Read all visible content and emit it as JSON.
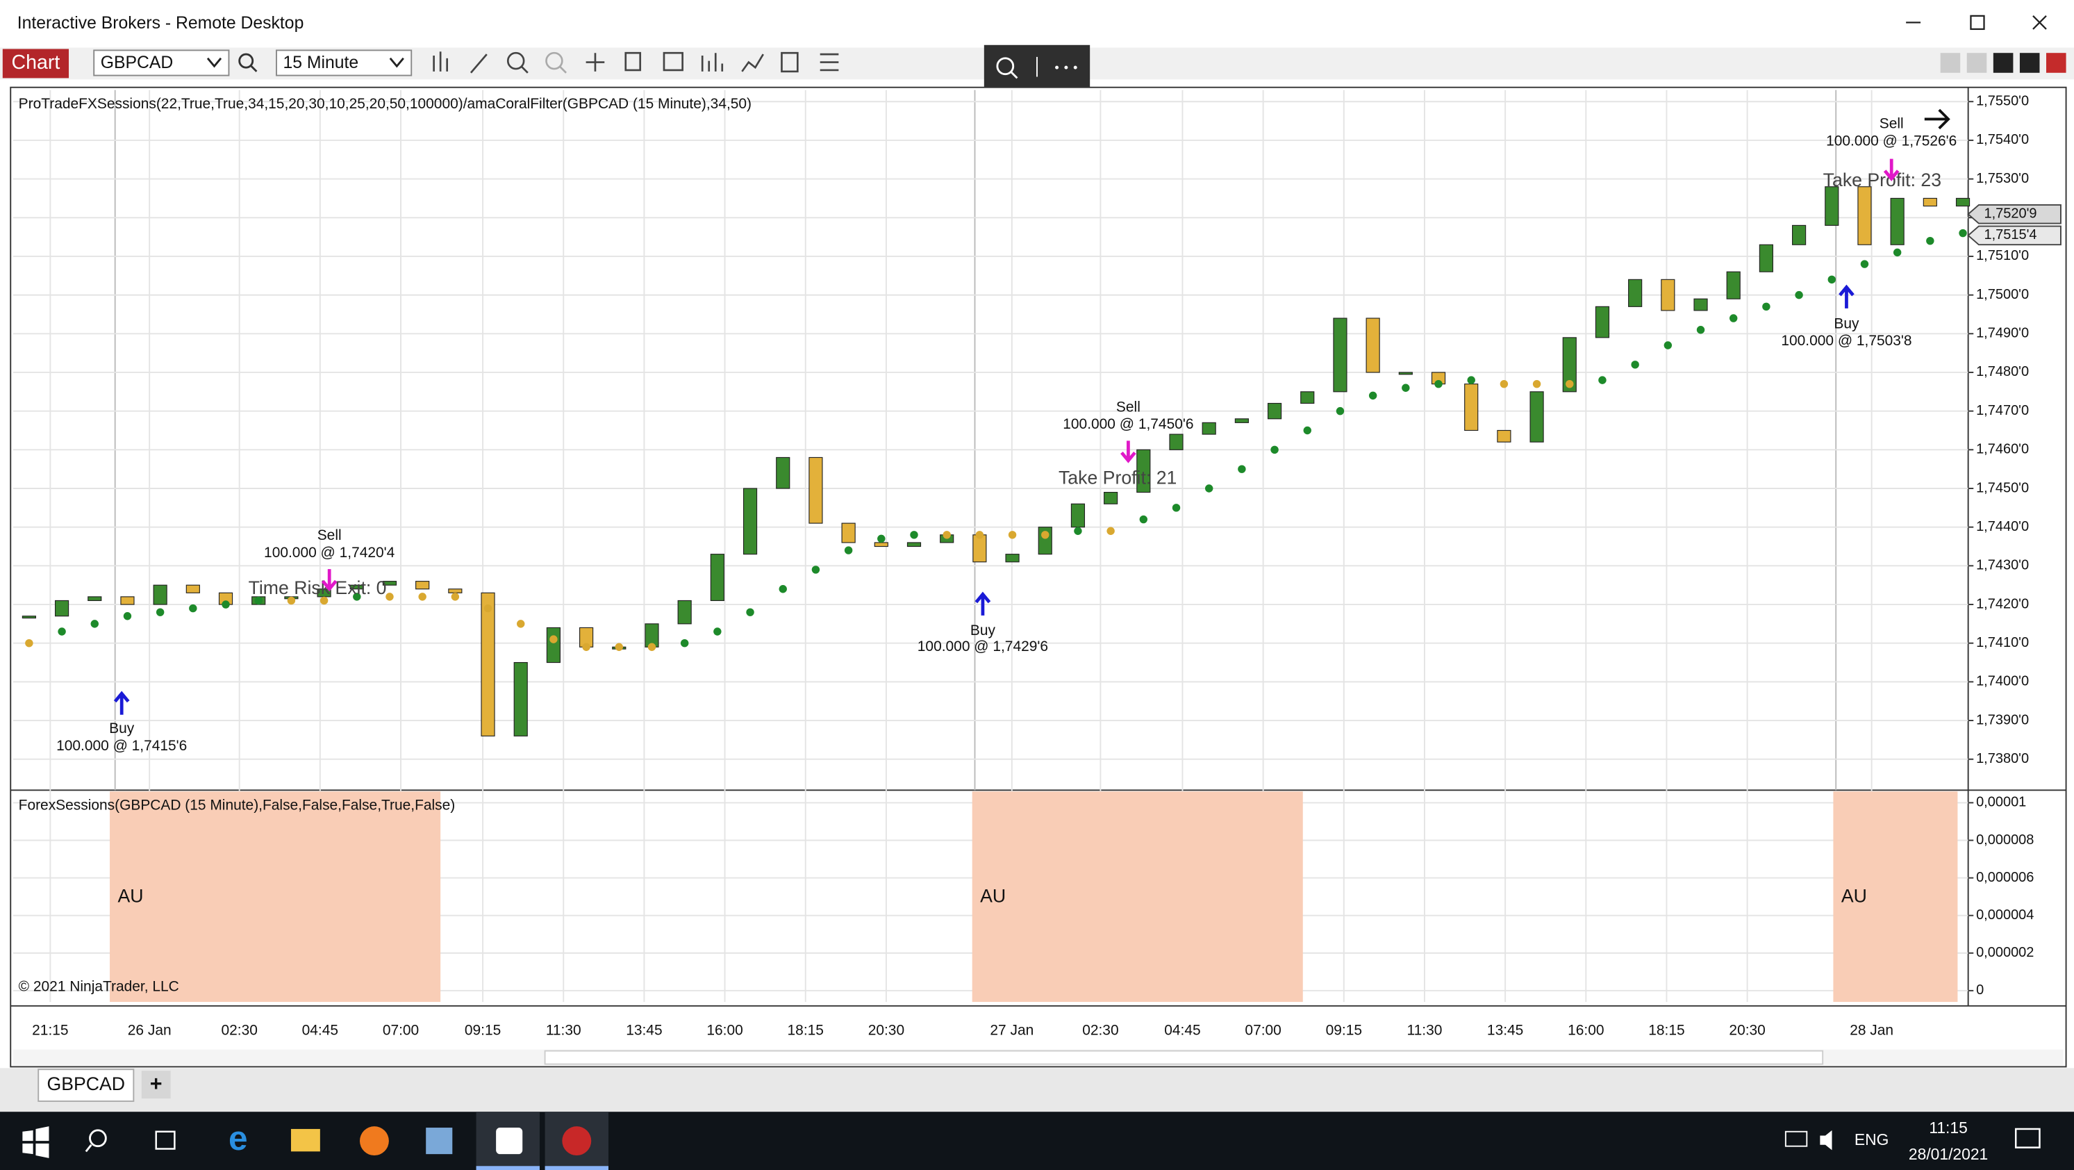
{
  "window": {
    "title": "Interactive Brokers - Remote Desktop"
  },
  "toolbar": {
    "chart_button": "Chart",
    "instrument": "GBPCAD",
    "interval": "15 Minute"
  },
  "chart_data": [
    {
      "type": "candlestick",
      "title": "ProTradeFXSessions(22,True,True,34,15,20,30,10,25,20,50,100000)/amaCoralFilter(GBPCAD (15 Minute),34,50)",
      "series": [
        {
          "color": "#3a8a2e",
          "down_color": "#e3b13a",
          "values": [
            1.7417,
            1.7421,
            1.7422,
            1.742,
            1.7425,
            1.7423,
            1.742,
            1.7422,
            1.7422,
            1.7424,
            1.7425,
            1.7426,
            1.7424,
            1.7423,
            1.7386,
            1.7405,
            1.7414,
            1.7409,
            1.7409,
            1.7415,
            1.7421,
            1.7433,
            1.745,
            1.7458,
            1.7441,
            1.7436,
            1.7435,
            1.7436,
            1.7438,
            1.7431,
            1.7433,
            1.744,
            1.7446,
            1.7449,
            1.746,
            1.7464,
            1.7467,
            1.7468,
            1.7472,
            1.7475,
            1.7494,
            1.748,
            1.748,
            1.7477,
            1.7465,
            1.7462,
            1.7475,
            1.7489,
            1.7497,
            1.7504,
            1.7496,
            1.7499,
            1.7506,
            1.7513,
            1.7518,
            1.7528,
            1.7513,
            1.7525,
            1.7523,
            1.7525
          ]
        },
        {
          "color": "#d9a830",
          "rise_color": "#1d8a2a",
          "values": [
            1.741,
            1.7413,
            1.7415,
            1.7417,
            1.7418,
            1.7419,
            1.742,
            1.7421,
            1.7421,
            1.7421,
            1.7422,
            1.7422,
            1.7422,
            1.7422,
            1.7419,
            1.7415,
            1.7411,
            1.7409,
            1.7409,
            1.7409,
            1.741,
            1.7413,
            1.7418,
            1.7424,
            1.7429,
            1.7434,
            1.7437,
            1.7438,
            1.7438,
            1.7438,
            1.7438,
            1.7438,
            1.7439,
            1.7439,
            1.7442,
            1.7445,
            1.745,
            1.7455,
            1.746,
            1.7465,
            1.747,
            1.7474,
            1.7476,
            1.7477,
            1.7478,
            1.7477,
            1.7477,
            1.7477,
            1.7478,
            1.7482,
            1.7487,
            1.7491,
            1.7494,
            1.7497,
            1.75,
            1.7504,
            1.7508,
            1.7511,
            1.7514,
            1.7516
          ]
        }
      ],
      "ylim": [
        1.7372,
        1.7553
      ],
      "yticks": [
        {
          "value": 1.738,
          "label": "1,7380'0"
        },
        {
          "value": 1.739,
          "label": "1,7390'0"
        },
        {
          "value": 1.74,
          "label": "1,7400'0"
        },
        {
          "value": 1.741,
          "label": "1,7410'0"
        },
        {
          "value": 1.742,
          "label": "1,7420'0"
        },
        {
          "value": 1.743,
          "label": "1,7430'0"
        },
        {
          "value": 1.744,
          "label": "1,7440'0"
        },
        {
          "value": 1.745,
          "label": "1,7450'0"
        },
        {
          "value": 1.746,
          "label": "1,7460'0"
        },
        {
          "value": 1.747,
          "label": "1,7470'0"
        },
        {
          "value": 1.748,
          "label": "1,7480'0"
        },
        {
          "value": 1.749,
          "label": "1,7490'0"
        },
        {
          "value": 1.75,
          "label": "1,7500'0"
        },
        {
          "value": 1.751,
          "label": "1,7510'0"
        },
        {
          "value": 1.752,
          "label": "1,7520'0"
        },
        {
          "value": 1.753,
          "label": "1,7530'0"
        },
        {
          "value": 1.754,
          "label": "1,7540'0"
        },
        {
          "value": 1.755,
          "label": "1,7550'0"
        }
      ],
      "price_labels": [
        {
          "value": 1.75209,
          "label": "1,7520'9"
        },
        {
          "value": 1.75154,
          "label": "1,7515'4"
        }
      ],
      "annotations": [
        "Sell",
        "100.000 @ 1,7420'4",
        "Time Risk Exit: 0",
        "Buy",
        "100.000 @ 1,7415'6",
        "Buy",
        "100.000 @ 1,7429'6",
        "Sell",
        "100.000 @ 1,7450'6",
        "Take Profit: 21",
        "Buy",
        "100.000 @ 1,7503'8",
        "Sell",
        "100.000 @ 1,7526'6",
        "Take Profit: 23"
      ],
      "grid": true
    },
    {
      "type": "sessions",
      "title": "ForexSessions(GBPCAD (15 Minute),False,False,False,True,False)",
      "color": "#f9cdb6",
      "sessions": [
        "AU",
        "AU",
        "AU"
      ],
      "ylim": [
        -6e-07,
        1.06e-05
      ],
      "yticks": [
        0,
        {
          "value": 2e-06,
          "label": "0,000002"
        },
        {
          "value": 4e-06,
          "label": "0,000004"
        },
        {
          "value": 6e-06,
          "label": "0,000006"
        },
        {
          "value": 8e-06,
          "label": "0,000008"
        },
        {
          "value": 1e-05,
          "label": "0,00001"
        }
      ],
      "grid": true
    }
  ],
  "time_axis": [
    "21:15",
    "26 Jan",
    "02:30",
    "04:45",
    "07:00",
    "09:15",
    "11:30",
    "13:45",
    "16:00",
    "18:15",
    "20:30",
    "27 Jan",
    "02:30",
    "04:45",
    "07:00",
    "09:15",
    "11:30",
    "13:45",
    "16:00",
    "18:15",
    "20:30",
    "28 Jan"
  ],
  "copyright": "© 2021 NinjaTrader, LLC",
  "tabs": {
    "active": "GBPCAD",
    "add": "+"
  },
  "taskbar": {
    "language": "ENG",
    "time": "11:15",
    "date": "28/01/2021"
  }
}
